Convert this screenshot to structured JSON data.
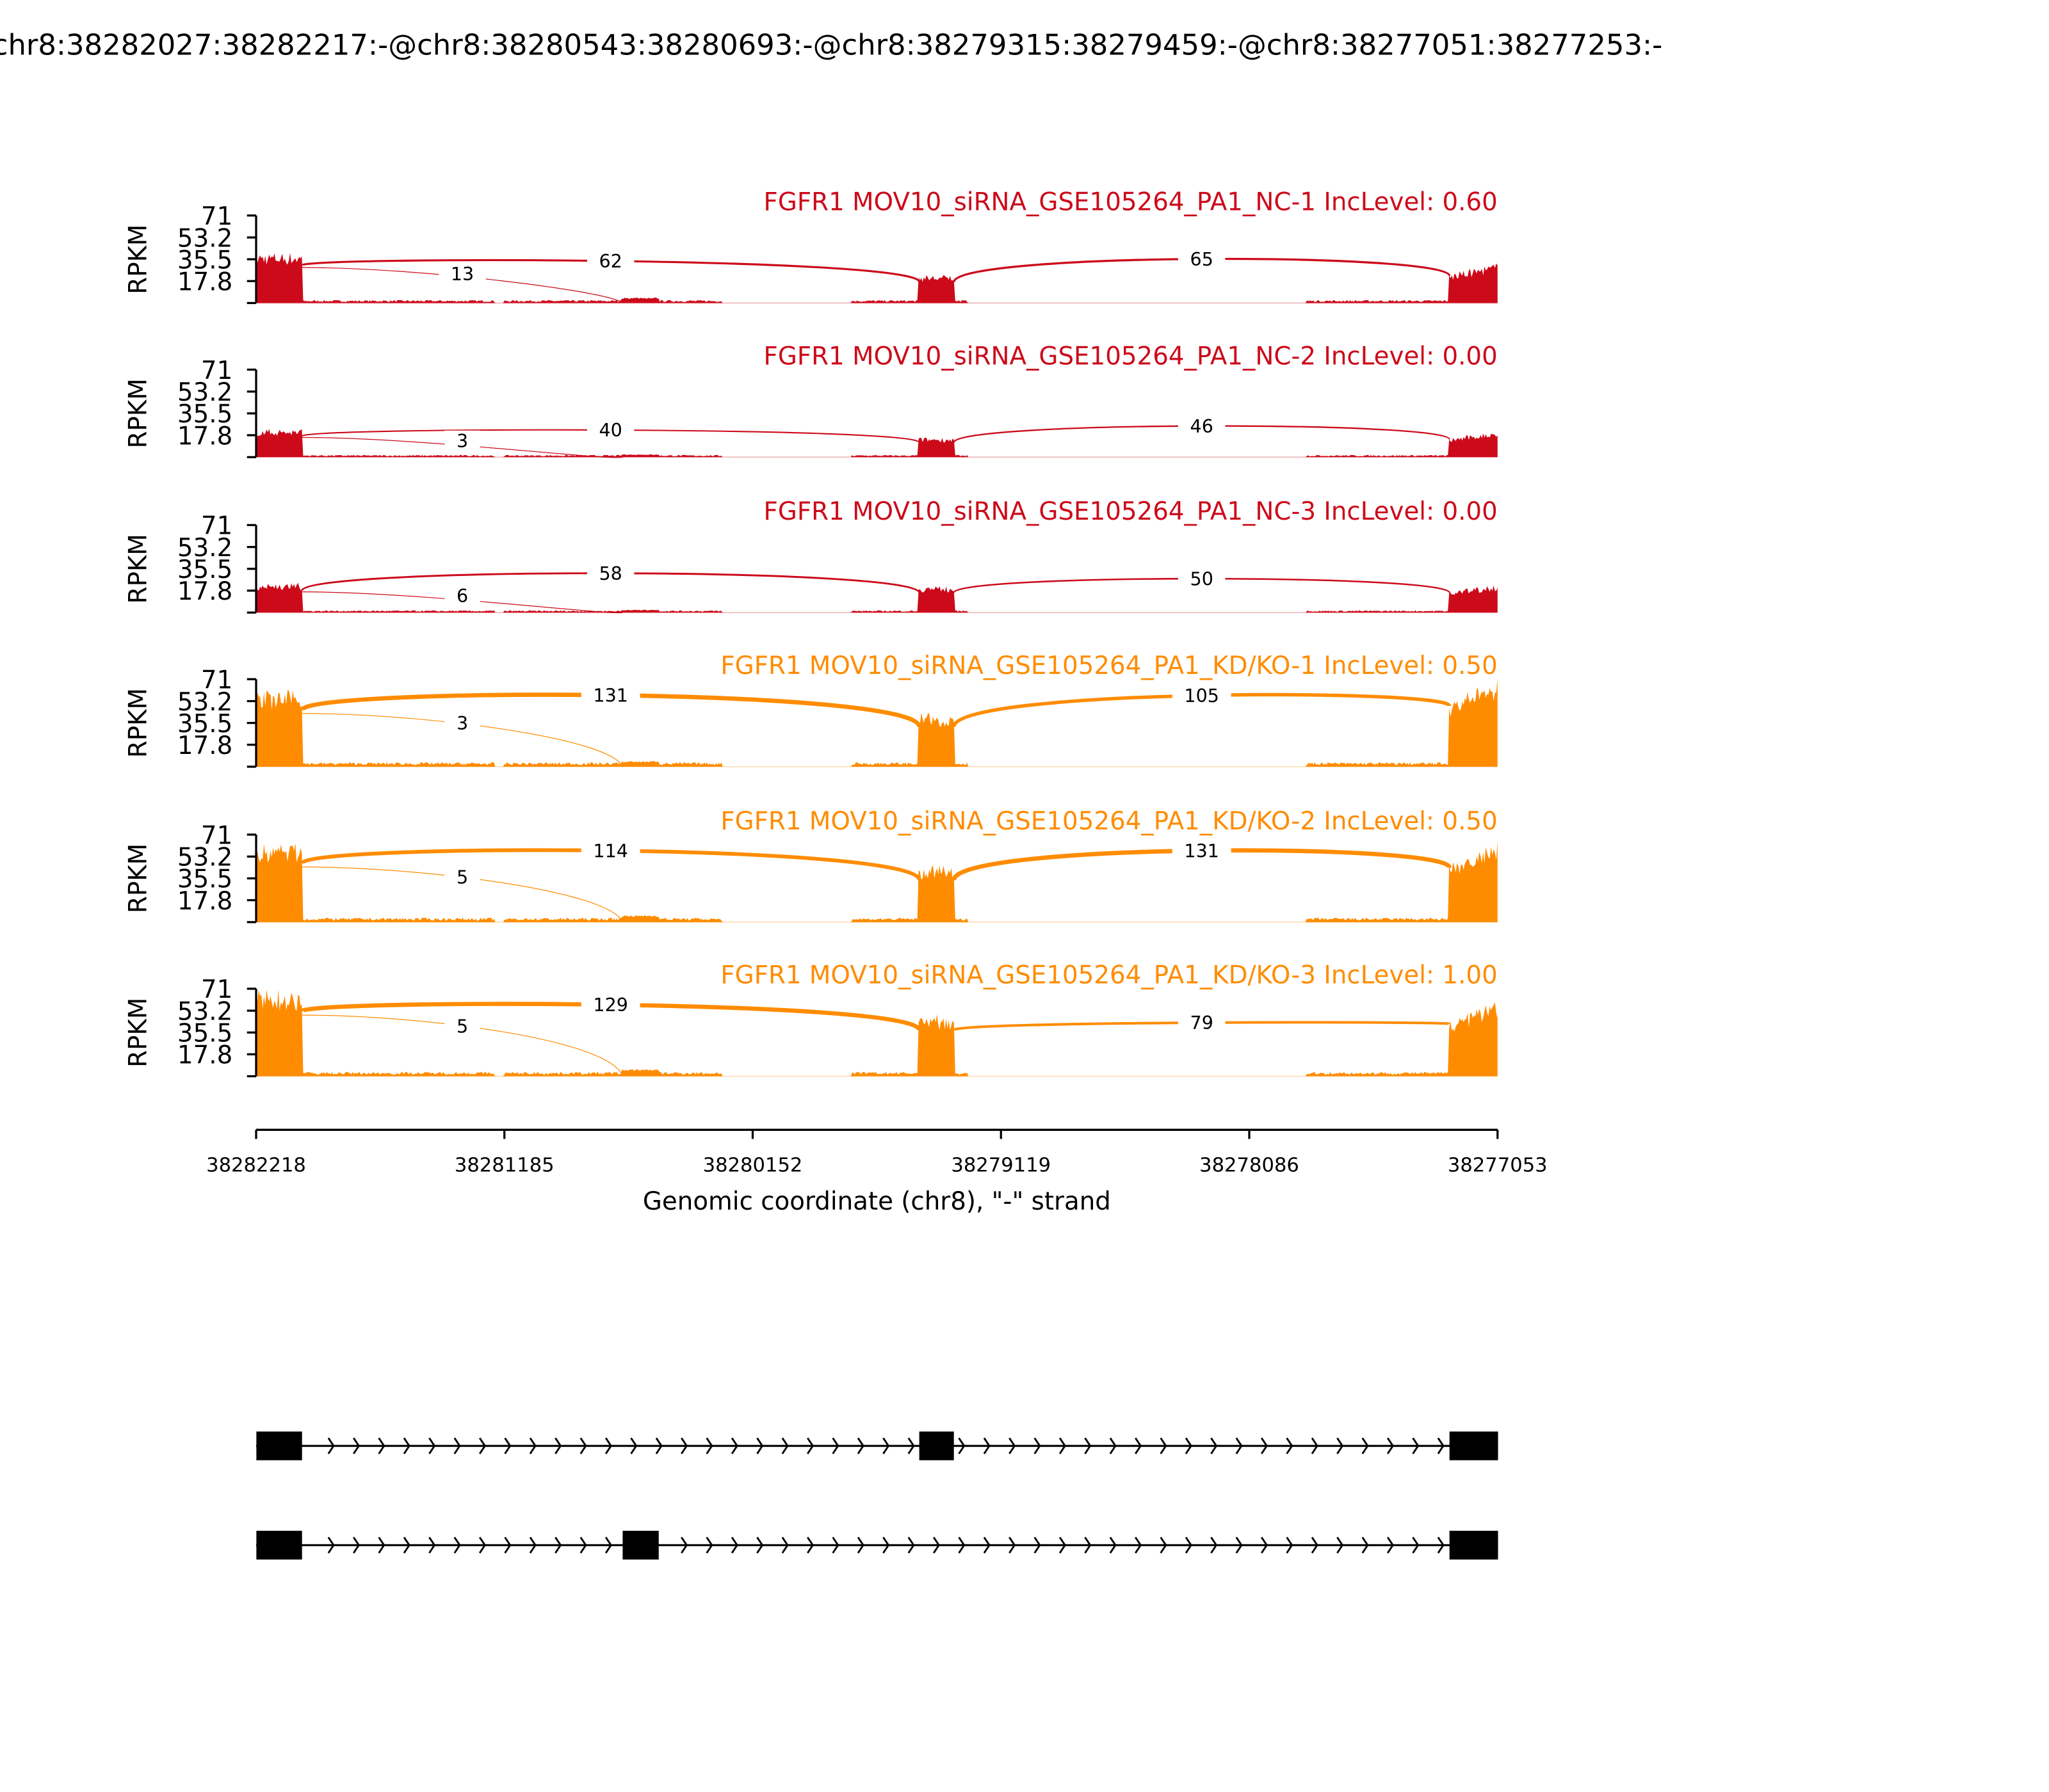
{
  "chart_data": {
    "type": "area",
    "title": "chr8:38282027:38282217:-@chr8:38280543:38280693:-@chr8:38279315:38279459:-@chr8:38277051:38277253:-",
    "ylabel": "RPKM",
    "xlabel": "Genomic coordinate (chr8), \"-\" strand",
    "xlim": [
      38282218,
      38277053
    ],
    "x_ticks": [
      "38282218",
      "38281185",
      "38280152",
      "38279119",
      "38278086",
      "38277053"
    ],
    "x_tick_values": [
      38282218,
      38281185,
      38280152,
      38279119,
      38278086,
      38277053
    ],
    "ylim": [
      0,
      71
    ],
    "y_ticks": [
      "71",
      "53.2",
      "35.5",
      "17.8"
    ],
    "y_tick_values": [
      71,
      53.2,
      35.5,
      17.8,
      0
    ],
    "exons": [
      [
        38282027,
        38282217
      ],
      [
        38280543,
        38280693
      ],
      [
        38279315,
        38279459
      ],
      [
        38277051,
        38277253
      ]
    ],
    "colors": {
      "NC": "#cc0a1a",
      "KD": "#ff8c00"
    },
    "samples": [
      {
        "title": "FGFR1 MOV10_siRNA_GSE105264_PA1_NC-1 IncLevel: 0.60",
        "group": "NC",
        "exon_levels": [
          36,
          4,
          20,
          26
        ],
        "intron_level": 2,
        "junctions": [
          {
            "label": "62",
            "count": 62,
            "type": "skip"
          },
          {
            "label": "13",
            "count": 13,
            "type": "inc_left"
          },
          {
            "label": "65",
            "count": 65,
            "type": "right"
          }
        ]
      },
      {
        "title": "FGFR1 MOV10_siRNA_GSE105264_PA1_NC-2 IncLevel: 0.00",
        "group": "NC",
        "exon_levels": [
          20,
          2,
          14,
          17
        ],
        "intron_level": 1.5,
        "junctions": [
          {
            "label": "40",
            "count": 40,
            "type": "skip"
          },
          {
            "label": "3",
            "count": 3,
            "type": "inc_left"
          },
          {
            "label": "46",
            "count": 46,
            "type": "right"
          }
        ]
      },
      {
        "title": "FGFR1 MOV10_siRNA_GSE105264_PA1_NC-3 IncLevel: 0.00",
        "group": "NC",
        "exon_levels": [
          21,
          2,
          19,
          19
        ],
        "intron_level": 1.5,
        "junctions": [
          {
            "label": "58",
            "count": 58,
            "type": "skip"
          },
          {
            "label": "6",
            "count": 6,
            "type": "inc_left"
          },
          {
            "label": "50",
            "count": 50,
            "type": "right"
          }
        ]
      },
      {
        "title": "FGFR1 MOV10_siRNA_GSE105264_PA1_KD/KO-1 IncLevel: 0.50",
        "group": "KD",
        "exon_levels": [
          54,
          4,
          38,
          58
        ],
        "intron_level": 3,
        "junctions": [
          {
            "label": "131",
            "count": 131,
            "type": "skip"
          },
          {
            "label": "3",
            "count": 3,
            "type": "inc_left"
          },
          {
            "label": "105",
            "count": 105,
            "type": "right"
          }
        ]
      },
      {
        "title": "FGFR1 MOV10_siRNA_GSE105264_PA1_KD/KO-2 IncLevel: 0.50",
        "group": "KD",
        "exon_levels": [
          56,
          5,
          40,
          52
        ],
        "intron_level": 3,
        "junctions": [
          {
            "label": "114",
            "count": 114,
            "type": "skip"
          },
          {
            "label": "5",
            "count": 5,
            "type": "inc_left"
          },
          {
            "label": "131",
            "count": 131,
            "type": "right"
          }
        ]
      },
      {
        "title": "FGFR1 MOV10_siRNA_GSE105264_PA1_KD/KO-3 IncLevel: 1.00",
        "group": "KD",
        "exon_levels": [
          62,
          5,
          44,
          50
        ],
        "intron_level": 3,
        "junctions": [
          {
            "label": "129",
            "count": 129,
            "type": "skip"
          },
          {
            "label": "5",
            "count": 5,
            "type": "inc_left"
          },
          {
            "label": "79",
            "count": 79,
            "type": "right"
          }
        ]
      }
    ],
    "isoforms": [
      {
        "exons": [
          0,
          2,
          3
        ]
      },
      {
        "exons": [
          0,
          1,
          3
        ]
      }
    ]
  }
}
